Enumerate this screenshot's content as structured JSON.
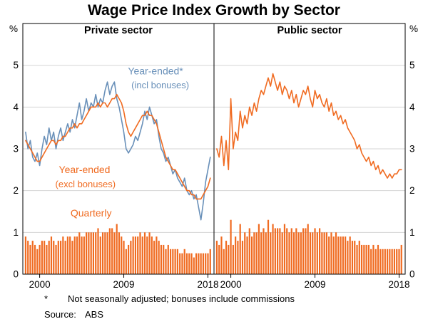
{
  "footnotes": {
    "marker": "*",
    "note": "Not seasonally adjusted; bonuses include commissions",
    "source_label": "Source:",
    "source": "ABS"
  },
  "chart_data": {
    "type": "mixed-line-bar",
    "title": "Wage Price Index Growth by Sector",
    "unit": "%",
    "ylim": [
      0,
      6
    ],
    "yticks": [
      0,
      1,
      2,
      3,
      4,
      5
    ],
    "xlim": [
      1998.2,
      2018.65
    ],
    "x_start": 1998.5,
    "x_step": 0.25,
    "xticks": [
      2000,
      2009,
      2018
    ],
    "grid_color": "#d6d6d6",
    "frame_color": "#000000",
    "colors": {
      "orange": "#f06b21",
      "blue": "#6990b9"
    },
    "panels": [
      {
        "title": "Private sector",
        "series": [
          {
            "name": "Quarterly",
            "type": "bar",
            "color": "#f06b21",
            "values": [
              0.9,
              0.8,
              0.7,
              0.8,
              0.7,
              0.6,
              0.7,
              0.8,
              0.8,
              0.7,
              0.8,
              0.9,
              0.8,
              0.7,
              0.8,
              0.8,
              0.9,
              0.8,
              0.9,
              0.9,
              0.8,
              0.9,
              0.9,
              1.0,
              0.9,
              0.9,
              1.0,
              1.0,
              1.0,
              1.0,
              1.0,
              1.1,
              0.9,
              1.0,
              1.0,
              1.0,
              1.1,
              1.1,
              1.0,
              1.2,
              1.0,
              0.9,
              0.8,
              0.6,
              0.7,
              0.8,
              0.9,
              0.9,
              0.9,
              1.0,
              0.9,
              1.0,
              0.9,
              1.0,
              0.9,
              0.8,
              0.9,
              0.8,
              0.7,
              0.7,
              0.6,
              0.7,
              0.6,
              0.6,
              0.6,
              0.6,
              0.5,
              0.5,
              0.6,
              0.5,
              0.5,
              0.5,
              0.4,
              0.5,
              0.5,
              0.5,
              0.5,
              0.5,
              0.5,
              0.6
            ]
          },
          {
            "name": "Year-ended (incl bonuses)",
            "type": "line",
            "color": "#6990b9",
            "values": [
              3.4,
              3.0,
              3.2,
              2.8,
              2.7,
              2.9,
              2.6,
              3.0,
              3.3,
              3.1,
              3.5,
              3.2,
              3.4,
              3.0,
              3.3,
              3.5,
              3.2,
              3.4,
              3.6,
              3.4,
              3.7,
              3.5,
              3.8,
              4.1,
              3.7,
              3.9,
              4.2,
              3.9,
              4.1,
              4.0,
              4.3,
              4.0,
              4.2,
              4.1,
              4.4,
              4.6,
              4.3,
              4.5,
              4.6,
              4.2,
              4.0,
              3.7,
              3.4,
              3.0,
              2.9,
              3.0,
              3.1,
              3.3,
              3.2,
              3.4,
              3.6,
              3.9,
              3.7,
              4.0,
              3.8,
              3.6,
              3.7,
              3.3,
              3.0,
              2.9,
              2.7,
              2.8,
              2.6,
              2.4,
              2.5,
              2.3,
              2.2,
              2.1,
              2.3,
              2.0,
              1.9,
              2.0,
              1.8,
              1.9,
              1.6,
              1.3,
              1.7,
              2.2,
              2.5,
              2.8
            ]
          },
          {
            "name": "Year-ended (excl bonuses)",
            "type": "line",
            "color": "#f06b21",
            "values": [
              3.2,
              3.1,
              3.0,
              2.9,
              2.8,
              2.7,
              2.7,
              2.8,
              2.9,
              3.0,
              3.1,
              3.2,
              3.2,
              3.1,
              3.2,
              3.2,
              3.3,
              3.3,
              3.4,
              3.5,
              3.5,
              3.6,
              3.5,
              3.6,
              3.6,
              3.7,
              3.8,
              3.9,
              4.0,
              4.0,
              4.0,
              4.1,
              4.0,
              4.1,
              4.1,
              4.0,
              4.1,
              4.2,
              4.2,
              4.3,
              4.2,
              4.1,
              3.9,
              3.6,
              3.4,
              3.3,
              3.4,
              3.5,
              3.6,
              3.7,
              3.8,
              3.8,
              3.9,
              3.8,
              3.8,
              3.7,
              3.6,
              3.4,
              3.2,
              3.0,
              2.8,
              2.7,
              2.6,
              2.5,
              2.5,
              2.4,
              2.3,
              2.2,
              2.1,
              2.0,
              2.0,
              1.9,
              1.9,
              1.8,
              1.8,
              1.8,
              1.9,
              2.0,
              2.1,
              2.3
            ]
          }
        ],
        "annotations": [
          {
            "text": "Year-ended*",
            "x": 2012.4,
            "y": 4.78,
            "color": "#6990b9",
            "size": 14
          },
          {
            "text": "(incl bonuses)",
            "x": 2012.9,
            "y": 4.45,
            "color": "#6990b9",
            "size": 13
          },
          {
            "text": "Year-ended",
            "x": 2004.8,
            "y": 2.42,
            "color": "#f06b21",
            "size": 14
          },
          {
            "text": "(excl bonuses)",
            "x": 2004.9,
            "y": 2.08,
            "color": "#f06b21",
            "size": 13
          },
          {
            "text": "Quarterly",
            "x": 2005.5,
            "y": 1.38,
            "color": "#f06b21",
            "size": 14
          }
        ]
      },
      {
        "title": "Public sector",
        "series": [
          {
            "name": "Quarterly",
            "type": "bar",
            "color": "#f06b21",
            "values": [
              0.8,
              0.7,
              0.9,
              0.6,
              0.8,
              0.7,
              1.3,
              0.7,
              0.9,
              0.8,
              1.2,
              0.8,
              1.0,
              0.9,
              1.1,
              0.9,
              1.0,
              1.0,
              1.2,
              1.0,
              1.1,
              1.0,
              1.3,
              1.0,
              1.2,
              1.1,
              1.1,
              1.1,
              1.0,
              1.2,
              1.1,
              1.0,
              1.1,
              1.0,
              1.1,
              1.0,
              1.0,
              1.1,
              1.1,
              1.2,
              1.0,
              1.0,
              1.1,
              1.0,
              1.1,
              1.0,
              1.0,
              1.0,
              0.9,
              1.0,
              0.9,
              1.0,
              0.9,
              0.9,
              0.9,
              0.9,
              0.8,
              0.9,
              0.8,
              0.8,
              0.7,
              0.8,
              0.7,
              0.7,
              0.7,
              0.7,
              0.6,
              0.7,
              0.6,
              0.7,
              0.6,
              0.6,
              0.6,
              0.6,
              0.6,
              0.6,
              0.6,
              0.6,
              0.6,
              0.7
            ]
          },
          {
            "name": "Year-ended",
            "type": "line",
            "color": "#f06b21",
            "values": [
              3.0,
              2.8,
              3.3,
              2.6,
              3.2,
              2.5,
              4.2,
              3.0,
              3.4,
              3.2,
              3.9,
              3.5,
              3.8,
              3.6,
              4.0,
              3.8,
              4.1,
              3.9,
              4.2,
              4.4,
              4.3,
              4.5,
              4.7,
              4.5,
              4.8,
              4.6,
              4.4,
              4.6,
              4.3,
              4.5,
              4.4,
              4.2,
              4.4,
              4.1,
              4.3,
              4.0,
              4.2,
              4.4,
              4.3,
              4.5,
              4.2,
              4.0,
              4.4,
              4.2,
              4.3,
              4.1,
              4.0,
              4.2,
              3.9,
              4.1,
              3.8,
              3.9,
              3.7,
              3.8,
              3.6,
              3.7,
              3.5,
              3.4,
              3.3,
              3.2,
              3.0,
              3.1,
              2.9,
              2.8,
              2.7,
              2.8,
              2.6,
              2.7,
              2.5,
              2.6,
              2.4,
              2.5,
              2.4,
              2.3,
              2.4,
              2.3,
              2.4,
              2.4,
              2.5,
              2.5
            ]
          }
        ],
        "annotations": []
      }
    ]
  }
}
